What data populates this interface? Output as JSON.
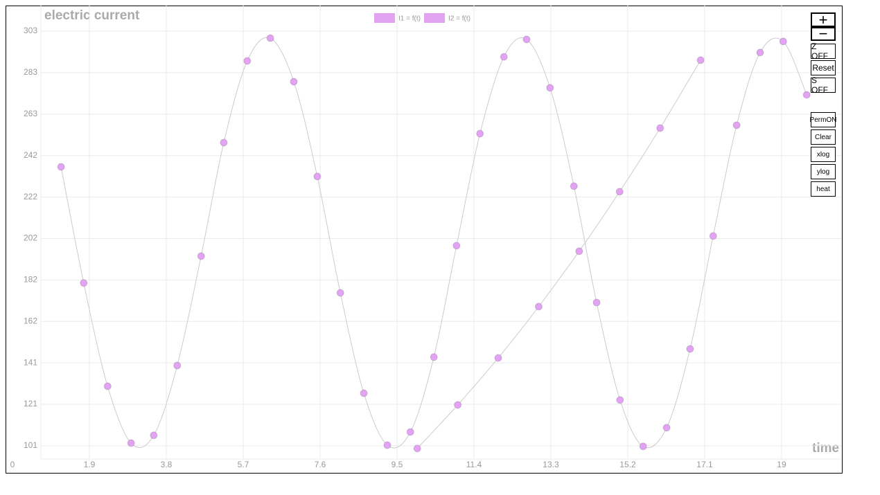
{
  "chart_data": {
    "type": "line",
    "title": "electric current",
    "x_label": "time",
    "grid": true,
    "xlim": [
      0,
      20.49
    ],
    "xticks": [
      0,
      1.9,
      3.8,
      5.7,
      7.6,
      9.5,
      11.4,
      13.3,
      15.2,
      17.1,
      19
    ],
    "ylim": [
      87.8,
      315.5
    ],
    "yticks": [
      101,
      {
        "value": 121.2,
        "label": "121"
      },
      {
        "value": 141.4,
        "label": "141"
      },
      {
        "value": 161.6,
        "label": "162"
      },
      {
        "value": 181.8,
        "label": "182"
      },
      202,
      {
        "value": 222.2,
        "label": "222"
      },
      {
        "value": 242.4,
        "label": "242"
      },
      {
        "value": 262.6,
        "label": "263"
      },
      {
        "value": 282.8,
        "label": "283"
      },
      303
    ],
    "series": [
      {
        "name": "I1 = f(t)",
        "color": "#e2a3f3",
        "x": [
          1.2,
          1.76,
          2.35,
          2.93,
          3.49,
          4.07,
          4.66,
          5.22,
          5.8,
          6.37,
          6.95,
          7.53,
          8.1,
          8.68,
          9.26,
          9.83,
          10.41,
          10.97,
          11.55,
          12.14,
          12.7,
          13.28,
          13.87,
          14.43,
          15.01,
          15.58,
          16.16,
          16.74,
          17.31,
          17.89,
          18.47,
          19.04,
          19.62
        ],
        "values": [
          236.9,
          180.3,
          130.0,
          102.3,
          106.1,
          140.1,
          193.4,
          248.7,
          288.5,
          299.6,
          278.4,
          232.2,
          175.5,
          126.6,
          101.3,
          107.7,
          144.2,
          198.5,
          253.1,
          290.5,
          299.0,
          275.4,
          227.5,
          170.8,
          123.3,
          100.7,
          109.8,
          148.2,
          203.2,
          257.2,
          292.6,
          298.0,
          272.0
        ]
      },
      {
        "name": "I2 = f(t)",
        "color": "#e2a3f3",
        "x": [
          10,
          11,
          12,
          13,
          14,
          15,
          16,
          17
        ],
        "values": [
          99.7,
          120.9,
          143.8,
          168.8,
          195.8,
          224.8,
          255.8,
          288.9
        ]
      }
    ]
  },
  "controls": [
    "+",
    "−",
    "Z OFF",
    "Reset",
    "S OFF",
    "PermON",
    "Clear",
    "xlog",
    "ylog",
    "heat"
  ]
}
